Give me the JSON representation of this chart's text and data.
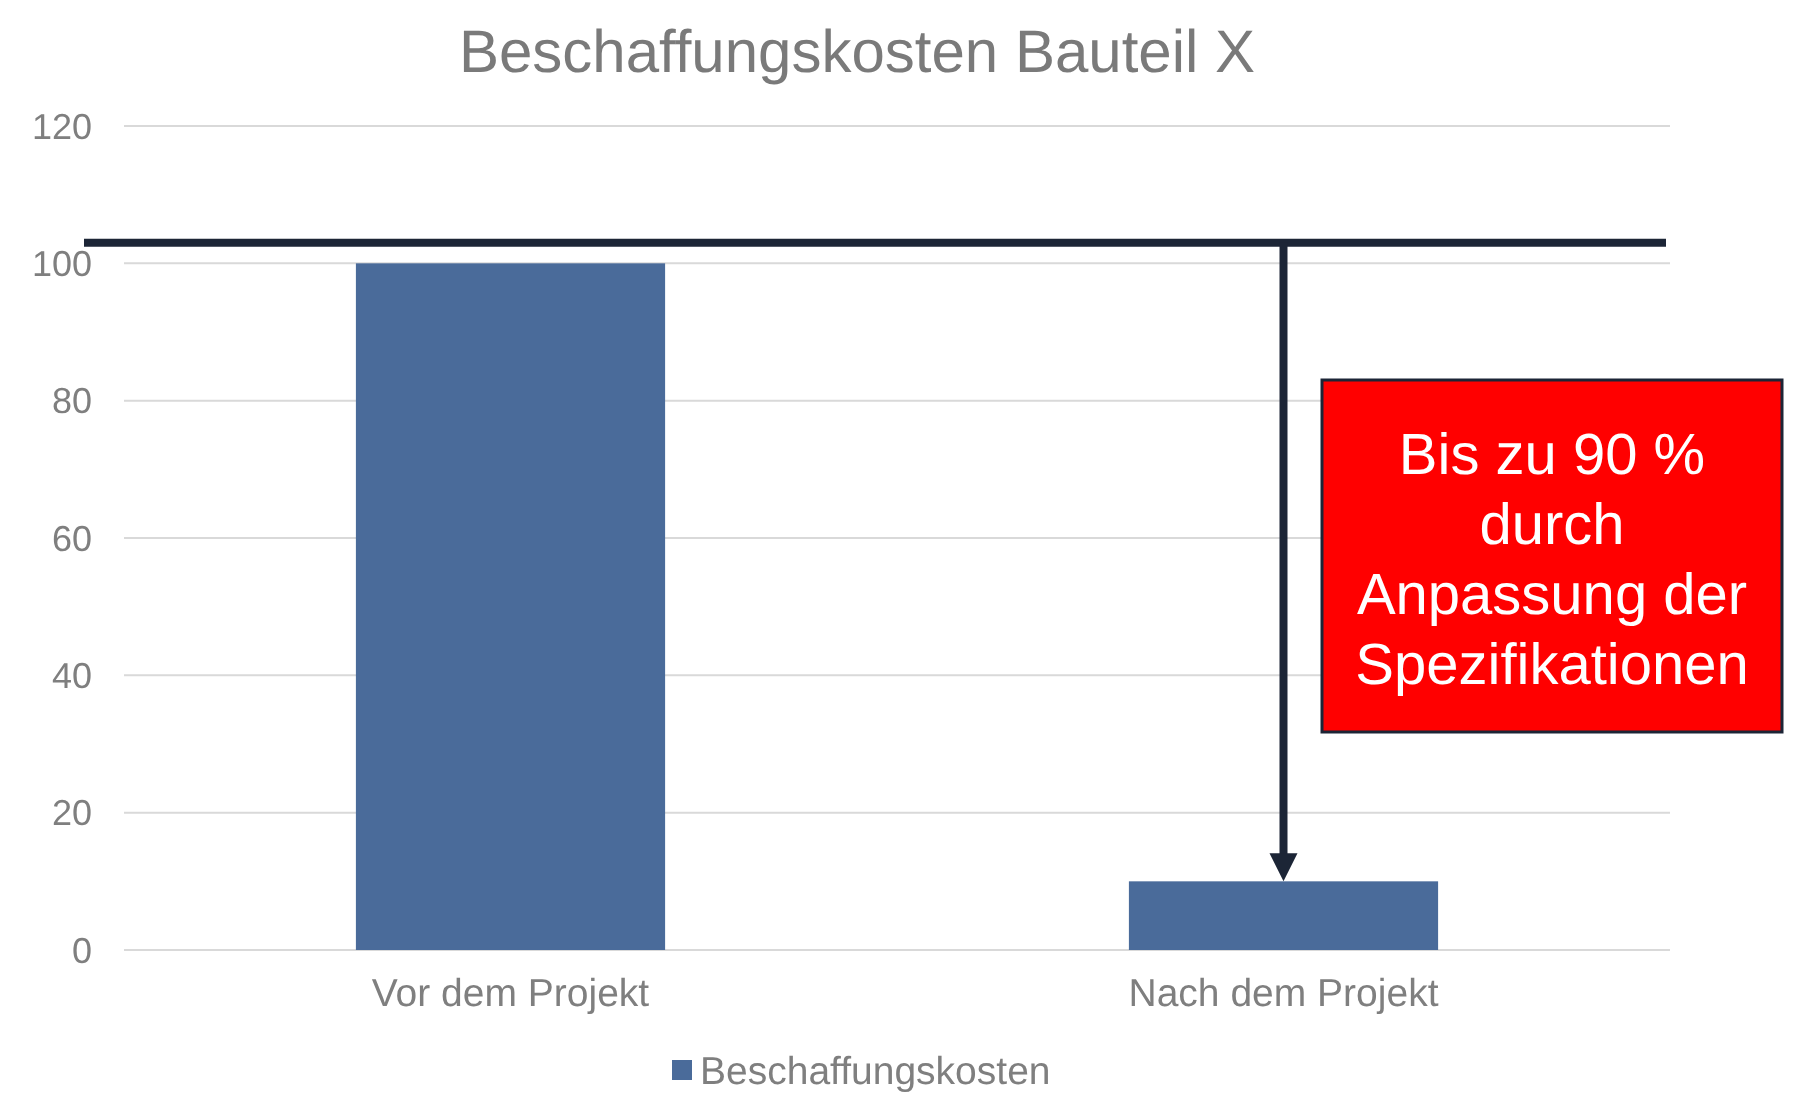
{
  "chart_data": {
    "type": "bar",
    "title": "Beschaffungskosten Bauteil X",
    "categories": [
      "Vor dem Projekt",
      "Nach dem Projekt"
    ],
    "series": [
      {
        "name": "Beschaffungskosten",
        "color": "#4a6b9a",
        "values": [
          100,
          10
        ]
      }
    ],
    "ylim": [
      0,
      120
    ],
    "yticks": [
      0,
      20,
      40,
      60,
      80,
      100,
      120
    ],
    "grid": "y",
    "legend": "bottom",
    "ref_lines": [
      {
        "axis": "y",
        "value": 103,
        "color": "#1c2536"
      }
    ],
    "annotations": [
      "Bis zu 90 % durch Anpassung der Spezifikationen"
    ]
  }
}
